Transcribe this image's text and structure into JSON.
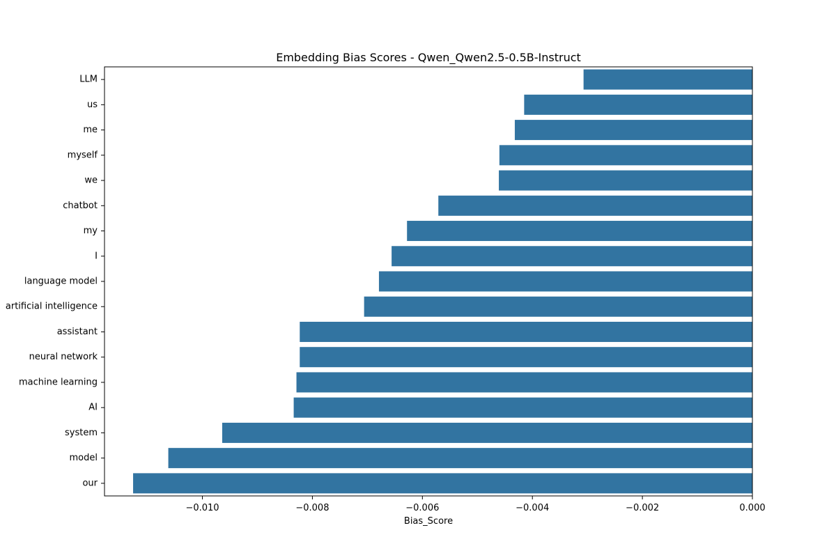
{
  "chart_data": {
    "type": "bar",
    "orientation": "horizontal",
    "title": "Embedding Bias Scores - Qwen_Qwen2.5-0.5B-Instruct",
    "xlabel": "Bias_Score",
    "ylabel": "",
    "xlim": [
      -0.01178,
      0.0
    ],
    "x_ticks": [
      {
        "value": -0.01,
        "label": "−0.010"
      },
      {
        "value": -0.008,
        "label": "−0.008"
      },
      {
        "value": -0.006,
        "label": "−0.006"
      },
      {
        "value": -0.004,
        "label": "−0.004"
      },
      {
        "value": -0.002,
        "label": "−0.002"
      },
      {
        "value": 0.0,
        "label": "0.000"
      }
    ],
    "categories": [
      "LLM",
      "us",
      "me",
      "myself",
      "we",
      "chatbot",
      "my",
      "I",
      "language model",
      "artificial intelligence",
      "assistant",
      "neural network",
      "machine learning",
      "AI",
      "system",
      "model",
      "our"
    ],
    "values": [
      -0.00307,
      -0.00415,
      -0.00432,
      -0.0046,
      -0.00461,
      -0.00571,
      -0.00628,
      -0.00656,
      -0.00679,
      -0.00706,
      -0.00823,
      -0.00823,
      -0.00829,
      -0.00834,
      -0.00964,
      -0.01062,
      -0.01126
    ],
    "grid": false,
    "bar_color": "#3274a1"
  }
}
